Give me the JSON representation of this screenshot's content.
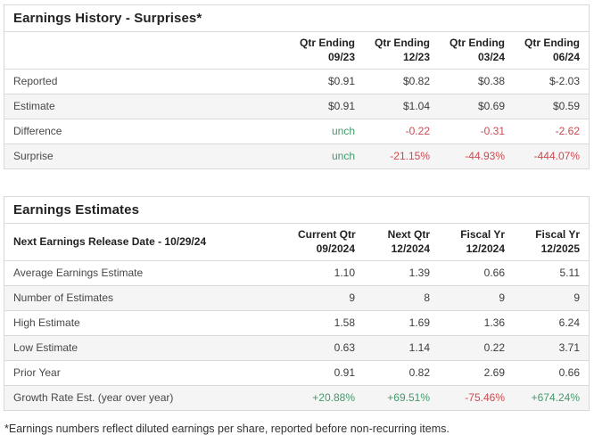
{
  "colors": {
    "positive": "#45996b",
    "negative": "#cb4a50"
  },
  "history": {
    "title": "Earnings History - Surprises*",
    "columns": [
      {
        "line1": "Qtr Ending",
        "line2": "09/23"
      },
      {
        "line1": "Qtr Ending",
        "line2": "12/23"
      },
      {
        "line1": "Qtr Ending",
        "line2": "03/24"
      },
      {
        "line1": "Qtr Ending",
        "line2": "06/24"
      }
    ],
    "rows": [
      {
        "label": "Reported",
        "values": [
          {
            "v": "$0.91",
            "cls": ""
          },
          {
            "v": "$0.82",
            "cls": ""
          },
          {
            "v": "$0.38",
            "cls": ""
          },
          {
            "v": "$-2.03",
            "cls": ""
          }
        ]
      },
      {
        "label": "Estimate",
        "values": [
          {
            "v": "$0.91",
            "cls": ""
          },
          {
            "v": "$1.04",
            "cls": ""
          },
          {
            "v": "$0.69",
            "cls": ""
          },
          {
            "v": "$0.59",
            "cls": ""
          }
        ]
      },
      {
        "label": "Difference",
        "values": [
          {
            "v": "unch",
            "cls": "pos"
          },
          {
            "v": "-0.22",
            "cls": "neg"
          },
          {
            "v": "-0.31",
            "cls": "neg"
          },
          {
            "v": "-2.62",
            "cls": "neg"
          }
        ]
      },
      {
        "label": "Surprise",
        "values": [
          {
            "v": "unch",
            "cls": "pos"
          },
          {
            "v": "-21.15%",
            "cls": "neg"
          },
          {
            "v": "-44.93%",
            "cls": "neg"
          },
          {
            "v": "-444.07%",
            "cls": "neg"
          }
        ]
      }
    ]
  },
  "estimates": {
    "title": "Earnings Estimates",
    "release_label": "Next Earnings Release Date - 10/29/24",
    "columns": [
      {
        "line1": "Current Qtr",
        "line2": "09/2024"
      },
      {
        "line1": "Next Qtr",
        "line2": "12/2024"
      },
      {
        "line1": "Fiscal Yr",
        "line2": "12/2024"
      },
      {
        "line1": "Fiscal Yr",
        "line2": "12/2025"
      }
    ],
    "rows": [
      {
        "label": "Average Earnings Estimate",
        "values": [
          {
            "v": "1.10",
            "cls": ""
          },
          {
            "v": "1.39",
            "cls": ""
          },
          {
            "v": "0.66",
            "cls": ""
          },
          {
            "v": "5.11",
            "cls": ""
          }
        ]
      },
      {
        "label": "Number of Estimates",
        "values": [
          {
            "v": "9",
            "cls": ""
          },
          {
            "v": "8",
            "cls": ""
          },
          {
            "v": "9",
            "cls": ""
          },
          {
            "v": "9",
            "cls": ""
          }
        ]
      },
      {
        "label": "High Estimate",
        "values": [
          {
            "v": "1.58",
            "cls": ""
          },
          {
            "v": "1.69",
            "cls": ""
          },
          {
            "v": "1.36",
            "cls": ""
          },
          {
            "v": "6.24",
            "cls": ""
          }
        ]
      },
      {
        "label": "Low Estimate",
        "values": [
          {
            "v": "0.63",
            "cls": ""
          },
          {
            "v": "1.14",
            "cls": ""
          },
          {
            "v": "0.22",
            "cls": ""
          },
          {
            "v": "3.71",
            "cls": ""
          }
        ]
      },
      {
        "label": "Prior Year",
        "values": [
          {
            "v": "0.91",
            "cls": ""
          },
          {
            "v": "0.82",
            "cls": ""
          },
          {
            "v": "2.69",
            "cls": ""
          },
          {
            "v": "0.66",
            "cls": ""
          }
        ]
      },
      {
        "label": "Growth Rate Est. (year over year)",
        "values": [
          {
            "v": "+20.88%",
            "cls": "pos"
          },
          {
            "v": "+69.51%",
            "cls": "pos"
          },
          {
            "v": "-75.46%",
            "cls": "neg"
          },
          {
            "v": "+674.24%",
            "cls": "pos"
          }
        ]
      }
    ]
  },
  "footnote": "*Earnings numbers reflect diluted earnings per share, reported before non-recurring items."
}
